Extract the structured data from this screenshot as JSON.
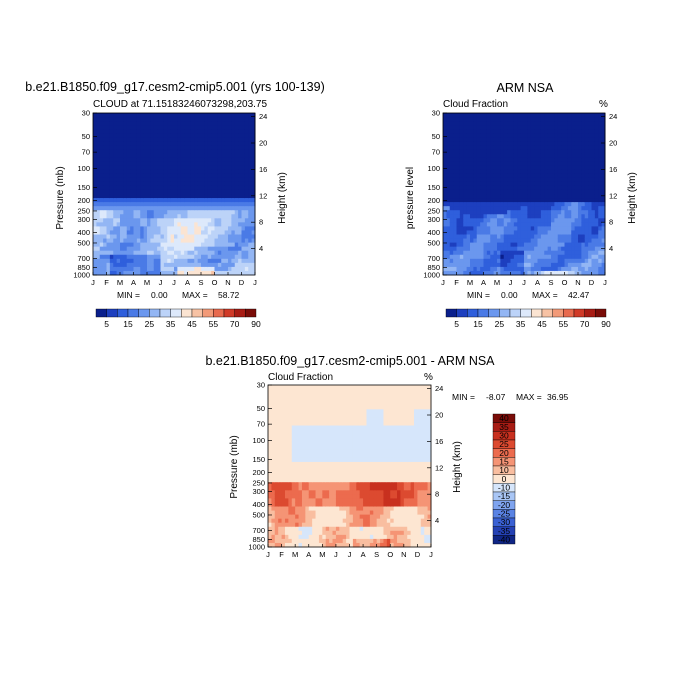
{
  "chart_data": [
    {
      "type": "contour",
      "title": "b.e21.B1850.f09_g17.cesm2-cmip5.001 (yrs 100-139)",
      "subtitle_left": "CLOUD at 71.15183246073298,203.75",
      "subtitle_right": "",
      "ylabel_left": "Pressure (mb)",
      "ylabel_right": "Height (km)",
      "months": [
        "J",
        "F",
        "M",
        "A",
        "M",
        "J",
        "J",
        "A",
        "S",
        "O",
        "N",
        "D",
        "J"
      ],
      "pressure_ticks": [
        "30",
        "50",
        "70",
        "100",
        "150",
        "200",
        "250",
        "300",
        "400",
        "500",
        "700",
        "850",
        "1000"
      ],
      "height_ticks": [
        "24",
        "20",
        "16",
        "12",
        "8",
        "4"
      ],
      "min_label": "MIN =",
      "min_value": "0.00",
      "max_label": "MAX =",
      "max_value": "58.72",
      "colorbar_labels": [
        "5",
        "15",
        "25",
        "35",
        "45",
        "55",
        "70",
        "90"
      ]
    },
    {
      "type": "contour",
      "title": "ARM NSA",
      "subtitle_left": "Cloud Fraction",
      "subtitle_right": "%",
      "ylabel_left": "pressure level",
      "ylabel_right": "Height (km)",
      "months": [
        "J",
        "F",
        "M",
        "A",
        "M",
        "J",
        "J",
        "A",
        "S",
        "O",
        "N",
        "D",
        "J"
      ],
      "pressure_ticks": [
        "30",
        "50",
        "70",
        "100",
        "150",
        "200",
        "250",
        "300",
        "400",
        "500",
        "700",
        "850",
        "1000"
      ],
      "height_ticks": [
        "24",
        "20",
        "16",
        "12",
        "8",
        "4"
      ],
      "min_label": "MIN =",
      "min_value": "0.00",
      "max_label": "MAX =",
      "max_value": "42.47",
      "colorbar_labels": [
        "5",
        "15",
        "25",
        "35",
        "45",
        "55",
        "70",
        "90"
      ]
    },
    {
      "type": "contour",
      "title": "b.e21.B1850.f09_g17.cesm2-cmip5.001 - ARM NSA",
      "subtitle_left": "Cloud Fraction",
      "subtitle_right": "%",
      "ylabel_left": "Pressure (mb)",
      "ylabel_right": "Height (km)",
      "months": [
        "J",
        "F",
        "M",
        "A",
        "M",
        "J",
        "J",
        "A",
        "S",
        "O",
        "N",
        "D",
        "J"
      ],
      "pressure_ticks": [
        "30",
        "50",
        "70",
        "100",
        "150",
        "200",
        "250",
        "300",
        "400",
        "500",
        "700",
        "850",
        "1000"
      ],
      "height_ticks": [
        "24",
        "20",
        "16",
        "12",
        "8",
        "4"
      ],
      "min_label": "MIN =",
      "min_value": "-8.07",
      "max_label": "MAX =",
      "max_value": "36.95",
      "colorbar_labels": [
        "40",
        "35",
        "30",
        "25",
        "20",
        "15",
        "10",
        "0",
        "-10",
        "-15",
        "-20",
        "-25",
        "-30",
        "-35",
        "-40"
      ]
    }
  ],
  "colors": {
    "seq": [
      "#0a1f8c",
      "#1d3fbf",
      "#2f5fdc",
      "#4a7ae6",
      "#6b97ee",
      "#93b6f4",
      "#bcd3f8",
      "#dde9fb",
      "#fbe4d2",
      "#f7c2a4",
      "#f29a78",
      "#e86a4e",
      "#d03a28",
      "#a81c14",
      "#7a0c08"
    ],
    "div": [
      "#7a0c08",
      "#a81c14",
      "#c8301f",
      "#dc4a30",
      "#ec6b4e",
      "#f59475",
      "#f9bea0",
      "#fde6d2",
      "#d6e6fb",
      "#a9c6f5",
      "#7fa4ef",
      "#5a83e4",
      "#3a61d4",
      "#2441b4",
      "#0f2585"
    ]
  }
}
